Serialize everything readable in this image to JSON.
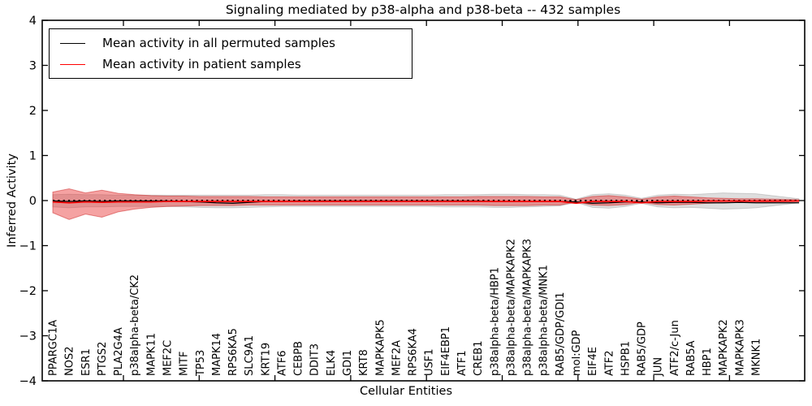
{
  "figure": {
    "title": "Signaling mediated by p38-alpha and p38-beta -- 432 samples",
    "xlabel": "Cellular Entities",
    "ylabel": "Inferred Activity"
  },
  "legend": {
    "items": [
      {
        "label": "Mean activity in all permuted samples",
        "color": "#000000"
      },
      {
        "label": "Mean activity in patient samples",
        "color": "#ff0000"
      }
    ]
  },
  "chart_data": {
    "type": "line",
    "title": "Signaling mediated by p38-alpha and p38-beta -- 432 samples",
    "xlabel": "Cellular Entities",
    "ylabel": "Inferred Activity",
    "ylim": [
      -4,
      4
    ],
    "ytick_values": [
      4,
      3,
      2,
      1,
      0,
      -1,
      -2,
      -3,
      -4
    ],
    "ytick_labels": [
      "4",
      "3",
      "2",
      "1",
      "0",
      "−1",
      "−2",
      "−3",
      "−4"
    ],
    "grid": false,
    "legend_position": "upper left",
    "zero_reference_line": 0,
    "categories": [
      "PPARGC1A",
      "NOS2",
      "ESR1",
      "PTGS2",
      "PLA2G4A",
      "p38alpha-beta/CK2",
      "MAPK11",
      "MEF2C",
      "MITF",
      "TP53",
      "MAPK14",
      "RPS6KA5",
      "SLC9A1",
      "KRT19",
      "ATF6",
      "CEBPB",
      "DDIT3",
      "ELK4",
      "GDI1",
      "KRT8",
      "MAPKAPK5",
      "MEF2A",
      "RPS6KA4",
      "USF1",
      "EIF4EBP1",
      "ATF1",
      "CREB1",
      "p38alpha-beta/HBP1",
      "p38alpha-beta/MAPKAPK2",
      "p38alpha-beta/MAPKAPK3",
      "p38alpha-beta/MNK1",
      "RAB5/GDP/GDI1",
      "mol:GDP",
      "EIF4E",
      "ATF2",
      "HSPB1",
      "RAB5/GDP",
      "JUN",
      "ATF2/c-Jun",
      "RAB5A",
      "HBP1",
      "MAPKAPK2",
      "MAPKAPK3",
      "MKNK1"
    ],
    "series": [
      {
        "name": "Mean activity in all permuted samples",
        "color": "#000000",
        "values": [
          -0.01,
          -0.02,
          -0.01,
          -0.02,
          -0.01,
          -0.01,
          -0.01,
          -0.01,
          -0.02,
          -0.03,
          -0.05,
          -0.06,
          -0.04,
          -0.02,
          -0.02,
          -0.01,
          -0.01,
          -0.01,
          -0.01,
          -0.01,
          -0.01,
          -0.01,
          -0.01,
          -0.01,
          -0.01,
          -0.01,
          -0.01,
          -0.02,
          -0.02,
          -0.02,
          -0.02,
          -0.02,
          -0.03,
          -0.06,
          -0.05,
          -0.03,
          -0.03,
          -0.05,
          -0.04,
          -0.04,
          -0.05,
          -0.05,
          -0.04,
          -0.05
        ],
        "tail": -0.05
      },
      {
        "name": "Mean activity in patient samples",
        "color": "#ff0000",
        "values": [
          -0.03,
          -0.05,
          -0.03,
          -0.04,
          -0.03,
          -0.03,
          -0.03,
          -0.02,
          -0.02,
          -0.02,
          -0.02,
          -0.02,
          -0.02,
          -0.02,
          -0.02,
          -0.02,
          -0.02,
          -0.02,
          -0.02,
          -0.02,
          -0.02,
          -0.02,
          -0.02,
          -0.02,
          -0.02,
          -0.02,
          -0.02,
          -0.02,
          -0.02,
          -0.02,
          -0.02,
          -0.02,
          -0.06,
          -0.02,
          -0.02,
          -0.02,
          -0.05,
          -0.02,
          -0.02,
          -0.02,
          -0.01,
          -0.01,
          -0.01,
          -0.01
        ],
        "tail": -0.01
      }
    ],
    "bands": [
      {
        "name": "all-permuted-range",
        "color": "#888888",
        "opacity": 0.28,
        "edge_color": "#777777",
        "edge_opacity": 0.3,
        "upper": [
          0.13,
          0.14,
          0.13,
          0.13,
          0.12,
          0.12,
          0.12,
          0.12,
          0.12,
          0.12,
          0.12,
          0.12,
          0.12,
          0.13,
          0.13,
          0.12,
          0.12,
          0.12,
          0.12,
          0.12,
          0.12,
          0.12,
          0.12,
          0.12,
          0.13,
          0.13,
          0.13,
          0.14,
          0.14,
          0.13,
          0.13,
          0.12,
          0.03,
          0.13,
          0.15,
          0.12,
          0.05,
          0.12,
          0.14,
          0.13,
          0.15,
          0.17,
          0.16,
          0.15
        ],
        "lower": [
          -0.14,
          -0.16,
          -0.14,
          -0.14,
          -0.13,
          -0.13,
          -0.13,
          -0.13,
          -0.14,
          -0.15,
          -0.16,
          -0.16,
          -0.15,
          -0.14,
          -0.13,
          -0.13,
          -0.13,
          -0.13,
          -0.13,
          -0.13,
          -0.13,
          -0.13,
          -0.13,
          -0.13,
          -0.14,
          -0.14,
          -0.14,
          -0.15,
          -0.15,
          -0.14,
          -0.13,
          -0.12,
          -0.04,
          -0.15,
          -0.17,
          -0.13,
          -0.06,
          -0.14,
          -0.16,
          -0.15,
          -0.17,
          -0.19,
          -0.18,
          -0.16
        ],
        "tail_upper": 0.04,
        "tail_lower": -0.05
      },
      {
        "name": "patient-range",
        "color": "#e83030",
        "opacity": 0.45,
        "edge_color": "#cc2222",
        "edge_opacity": 0.5,
        "upper": [
          0.19,
          0.26,
          0.17,
          0.23,
          0.16,
          0.13,
          0.11,
          0.1,
          0.1,
          0.09,
          0.09,
          0.09,
          0.09,
          0.08,
          0.08,
          0.08,
          0.08,
          0.08,
          0.08,
          0.08,
          0.08,
          0.08,
          0.08,
          0.08,
          0.08,
          0.08,
          0.09,
          0.09,
          0.09,
          0.09,
          0.08,
          0.08,
          0.02,
          0.09,
          0.11,
          0.08,
          0.03,
          0.08,
          0.1,
          0.08,
          0.06,
          0.05,
          0.04,
          0.04
        ],
        "lower": [
          -0.27,
          -0.42,
          -0.3,
          -0.37,
          -0.25,
          -0.19,
          -0.15,
          -0.13,
          -0.12,
          -0.11,
          -0.11,
          -0.11,
          -0.1,
          -0.1,
          -0.1,
          -0.1,
          -0.1,
          -0.1,
          -0.1,
          -0.1,
          -0.1,
          -0.1,
          -0.1,
          -0.1,
          -0.1,
          -0.1,
          -0.1,
          -0.11,
          -0.11,
          -0.11,
          -0.1,
          -0.1,
          -0.03,
          -0.1,
          -0.11,
          -0.09,
          -0.04,
          -0.09,
          -0.1,
          -0.08,
          -0.06,
          -0.05,
          -0.04,
          -0.04
        ],
        "tail_upper": 0.02,
        "tail_lower": -0.02
      }
    ]
  }
}
